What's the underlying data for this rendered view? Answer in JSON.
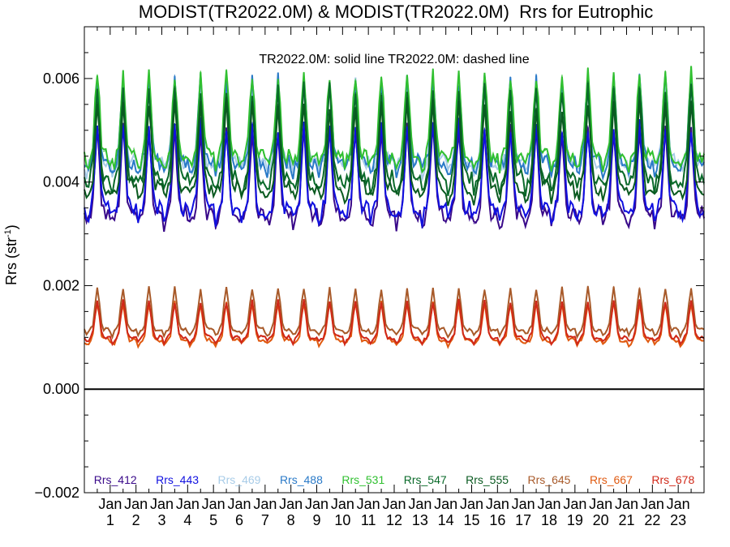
{
  "chart_data": {
    "type": "line",
    "title": "MODIST(TR2022.0M) & MODIST(TR2022.0M)  Rrs for Eutrophic",
    "subtitle": "TR2022.0M: solid line   TR2022.0M: dashed line",
    "ylabel_main": "Rrs (str",
    "ylabel_sup": "-1",
    "ylabel_tail": ")",
    "ylim": [
      -0.002,
      0.007
    ],
    "yticks": [
      "0.006",
      "0.004",
      "0.002",
      "0.000",
      "−0.002"
    ],
    "ytick_values": [
      0.006,
      0.004,
      0.002,
      0.0,
      -0.002
    ],
    "xlim": [
      0,
      24
    ],
    "xticks": [
      {
        "month": "Jan",
        "year": "1"
      },
      {
        "month": "Jan",
        "year": "2"
      },
      {
        "month": "Jan",
        "year": "3"
      },
      {
        "month": "Jan",
        "year": "4"
      },
      {
        "month": "Jan",
        "year": "5"
      },
      {
        "month": "Jan",
        "year": "6"
      },
      {
        "month": "Jan",
        "year": "7"
      },
      {
        "month": "Jan",
        "year": "8"
      },
      {
        "month": "Jan",
        "year": "9"
      },
      {
        "month": "Jan",
        "year": "10"
      },
      {
        "month": "Jan",
        "year": "11"
      },
      {
        "month": "Jan",
        "year": "12"
      },
      {
        "month": "Jan",
        "year": "13"
      },
      {
        "month": "Jan",
        "year": "14"
      },
      {
        "month": "Jan",
        "year": "15"
      },
      {
        "month": "Jan",
        "year": "16"
      },
      {
        "month": "Jan",
        "year": "17"
      },
      {
        "month": "Jan",
        "year": "18"
      },
      {
        "month": "Jan",
        "year": "19"
      },
      {
        "month": "Jan",
        "year": "20"
      },
      {
        "month": "Jan",
        "year": "21"
      },
      {
        "month": "Jan",
        "year": "22"
      },
      {
        "month": "Jan",
        "year": "23"
      }
    ],
    "grid": false,
    "legend_position": "bottom",
    "series": [
      {
        "name": "Rrs_412",
        "color": "#3a0a8a",
        "base": 0.0034,
        "amp": 0.0016
      },
      {
        "name": "Rrs_443",
        "color": "#1010e0",
        "base": 0.0035,
        "amp": 0.0016
      },
      {
        "name": "Rrs_469",
        "color": "#a8cce8",
        "base": 0.0044,
        "amp": 0.0015
      },
      {
        "name": "Rrs_488",
        "color": "#2a7ac8",
        "base": 0.0044,
        "amp": 0.0016
      },
      {
        "name": "Rrs_531",
        "color": "#30c030",
        "base": 0.0045,
        "amp": 0.0016
      },
      {
        "name": "Rrs_547",
        "color": "#0a6a2a",
        "base": 0.0041,
        "amp": 0.0017
      },
      {
        "name": "Rrs_555",
        "color": "#0a5a20",
        "base": 0.0039,
        "amp": 0.0016
      },
      {
        "name": "Rrs_645",
        "color": "#a85a2a",
        "base": 0.00115,
        "amp": 0.0008
      },
      {
        "name": "Rrs_667",
        "color": "#e05a10",
        "base": 0.00095,
        "amp": 0.00072
      },
      {
        "name": "Rrs_678",
        "color": "#d02818",
        "base": 0.001,
        "amp": 0.0007
      }
    ]
  }
}
